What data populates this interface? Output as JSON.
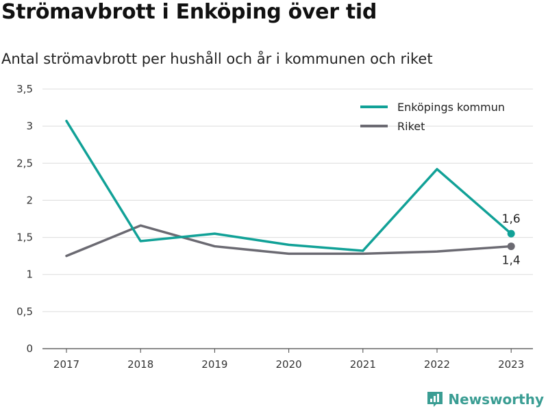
{
  "chart_data": {
    "type": "line",
    "title": "Strömavbrott i Enköping över tid",
    "subtitle": "Antal strömavbrott per hushåll och år i kommunen och riket",
    "x": [
      "2017",
      "2018",
      "2019",
      "2020",
      "2021",
      "2022",
      "2023"
    ],
    "y_ticks": [
      "0",
      "0,5",
      "1",
      "1,5",
      "2",
      "2,5",
      "3",
      "3,5"
    ],
    "ylim": [
      0,
      3.5
    ],
    "grid": true,
    "legend_position": "top-right",
    "series": [
      {
        "name": "Enköpings kommun",
        "color": "#11a197",
        "values": [
          3.07,
          1.45,
          1.55,
          1.4,
          1.32,
          2.42,
          1.55
        ],
        "end_label": "1,6"
      },
      {
        "name": "Riket",
        "color": "#6b6a72",
        "values": [
          1.25,
          1.66,
          1.38,
          1.28,
          1.28,
          1.31,
          1.38
        ],
        "end_label": "1,4"
      }
    ]
  },
  "brand": {
    "name": "Newsworthy",
    "icon": "newsworthy-logo-icon",
    "color": "#3a9d93"
  }
}
